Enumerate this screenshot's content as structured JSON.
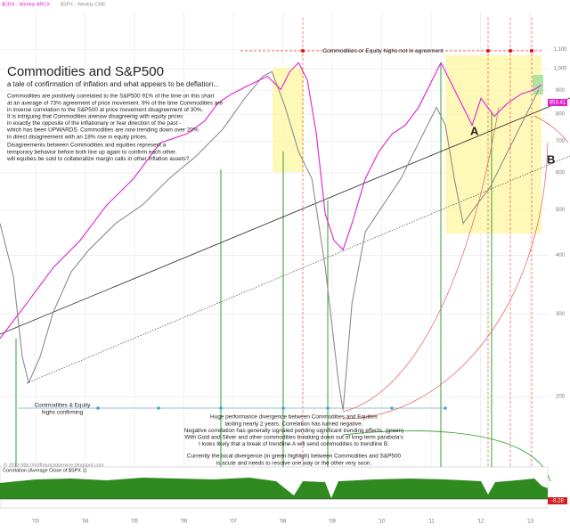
{
  "chart_data": {
    "type": "line",
    "title": "Commodities and S&P500",
    "subtitle": "a tale of confirmation of inflation and what appears to be deflation...",
    "log_scale": true,
    "grid": true,
    "xlim": [
      2002.28,
      2013.36
    ],
    "xticks": [
      {
        "value": 2003,
        "label": "'03"
      },
      {
        "value": 2004,
        "label": "'04"
      },
      {
        "value": 2005,
        "label": "'05"
      },
      {
        "value": 2006,
        "label": "'06"
      },
      {
        "value": 2007,
        "label": "'07"
      },
      {
        "value": 2008,
        "label": "'08"
      },
      {
        "value": 2009,
        "label": "'09"
      },
      {
        "value": 2010,
        "label": "'10"
      },
      {
        "value": 2011,
        "label": "'11"
      },
      {
        "value": 2012,
        "label": "'12"
      },
      {
        "value": 2013,
        "label": "'13"
      }
    ],
    "ylim": [
      144,
      1330
    ],
    "yticks": [
      200,
      300,
      400,
      500,
      600,
      700,
      800,
      900,
      {
        "value": 1000,
        "label": "1,000"
      },
      {
        "value": 1100,
        "label": "1,100"
      }
    ],
    "series": [
      {
        "name": "$SPX - Weekly CME",
        "color": "#8c8c8c",
        "x": [
          2002.28,
          2002.55,
          2002.73,
          2002.86,
          2003.09,
          2003.36,
          2003.72,
          2004.08,
          2004.62,
          2005.16,
          2005.7,
          2006.24,
          2006.78,
          2007.23,
          2007.6,
          2007.78,
          2008.05,
          2008.32,
          2008.59,
          2008.86,
          2009.13,
          2009.22,
          2009.4,
          2009.67,
          2010.03,
          2010.39,
          2010.75,
          2011.11,
          2011.29,
          2011.47,
          2011.65,
          2011.92,
          2012.19,
          2012.46,
          2012.73,
          2013.0,
          2013.18
        ],
        "values": [
          468,
          361,
          243,
          214,
          243,
          303,
          369,
          411,
          468,
          512,
          583,
          650,
          742,
          865,
          964,
          986,
          828,
          665,
          583,
          377,
          214,
          187,
          316,
          449,
          512,
          583,
          695,
          828,
          758,
          583,
          468,
          512,
          558,
          637,
          726,
          828,
          903
        ]
      },
      {
        "name": "$CRX - Weekly ARCX",
        "color": "#e020d0",
        "x": [
          2002.28,
          2002.82,
          2003.36,
          2003.9,
          2004.44,
          2004.98,
          2005.52,
          2006.06,
          2006.42,
          2006.69,
          2006.96,
          2007.32,
          2007.69,
          2007.96,
          2008.14,
          2008.32,
          2008.5,
          2008.68,
          2008.86,
          2009.04,
          2009.22,
          2009.4,
          2009.67,
          2009.94,
          2010.21,
          2010.48,
          2010.75,
          2011.02,
          2011.2,
          2011.38,
          2011.65,
          2011.83,
          2012.01,
          2012.28,
          2012.55,
          2012.82,
          2013.09,
          2013.23
        ],
        "values": [
          266,
          316,
          377,
          430,
          512,
          583,
          695,
          726,
          774,
          845,
          883,
          923,
          964,
          903,
          986,
          1030,
          944,
          726,
          490,
          430,
          411,
          468,
          583,
          665,
          726,
          758,
          828,
          944,
          1030,
          944,
          828,
          758,
          865,
          792,
          845,
          883,
          903,
          923
        ]
      }
    ],
    "last_label": "853.41",
    "indicator_label": "-8.28",
    "legend_text": "Correlation (Average Close of $SPX 1)",
    "label_a": "A",
    "label_b": "B",
    "top_note": "Commodities or Equity highs not in agreement",
    "confirm_note": [
      "Commodities & Equity",
      "highs confirming"
    ],
    "notes": [
      "Commodities are positively correlated to the S&P500 91% of the time on this chart",
      "at an average of 73% agreement of price movement. 9% of the time Commodities are",
      "in inverse correlation to the S&P500 at price movement disagreement of 30%.",
      "It is intriguing that Commodities arenow disagreeing with equity prices",
      "in exactly the opposite of the inflationary or fear direction of the past -",
      "which has been UPWARDS.  Commodities are now trending down over 20%",
      "in direct disagreement with an 18% rise in equity prices."
    ],
    "notes_b": [
      "Disagreements between Commodities and equities represent a",
      "temporary behavior before both line up again to confirm each other.",
      "will equities be sold to collateralize margin calls in other inflation assets?"
    ],
    "bottom_notes": [
      "Huge performance divergence between Commodities and Equities",
      "lasting nearly 2 years. Correlation has turned negative.",
      "Negative correlation has generally signaled pending significant trending effects. (green)",
      "With Gold and Silver and other commodities breaking down out of long-term parabola's",
      "I looks likely that a break of trendline A will send commodities to trendline B."
    ],
    "bottom_notes_b": [
      "Currently the local divergence (in green highligh) between Commodities and S&P500",
      "is acute and needs to resolve one way or the other very soon."
    ],
    "copyright": "© 2013 http://m3financialservice.blogspot.com"
  }
}
